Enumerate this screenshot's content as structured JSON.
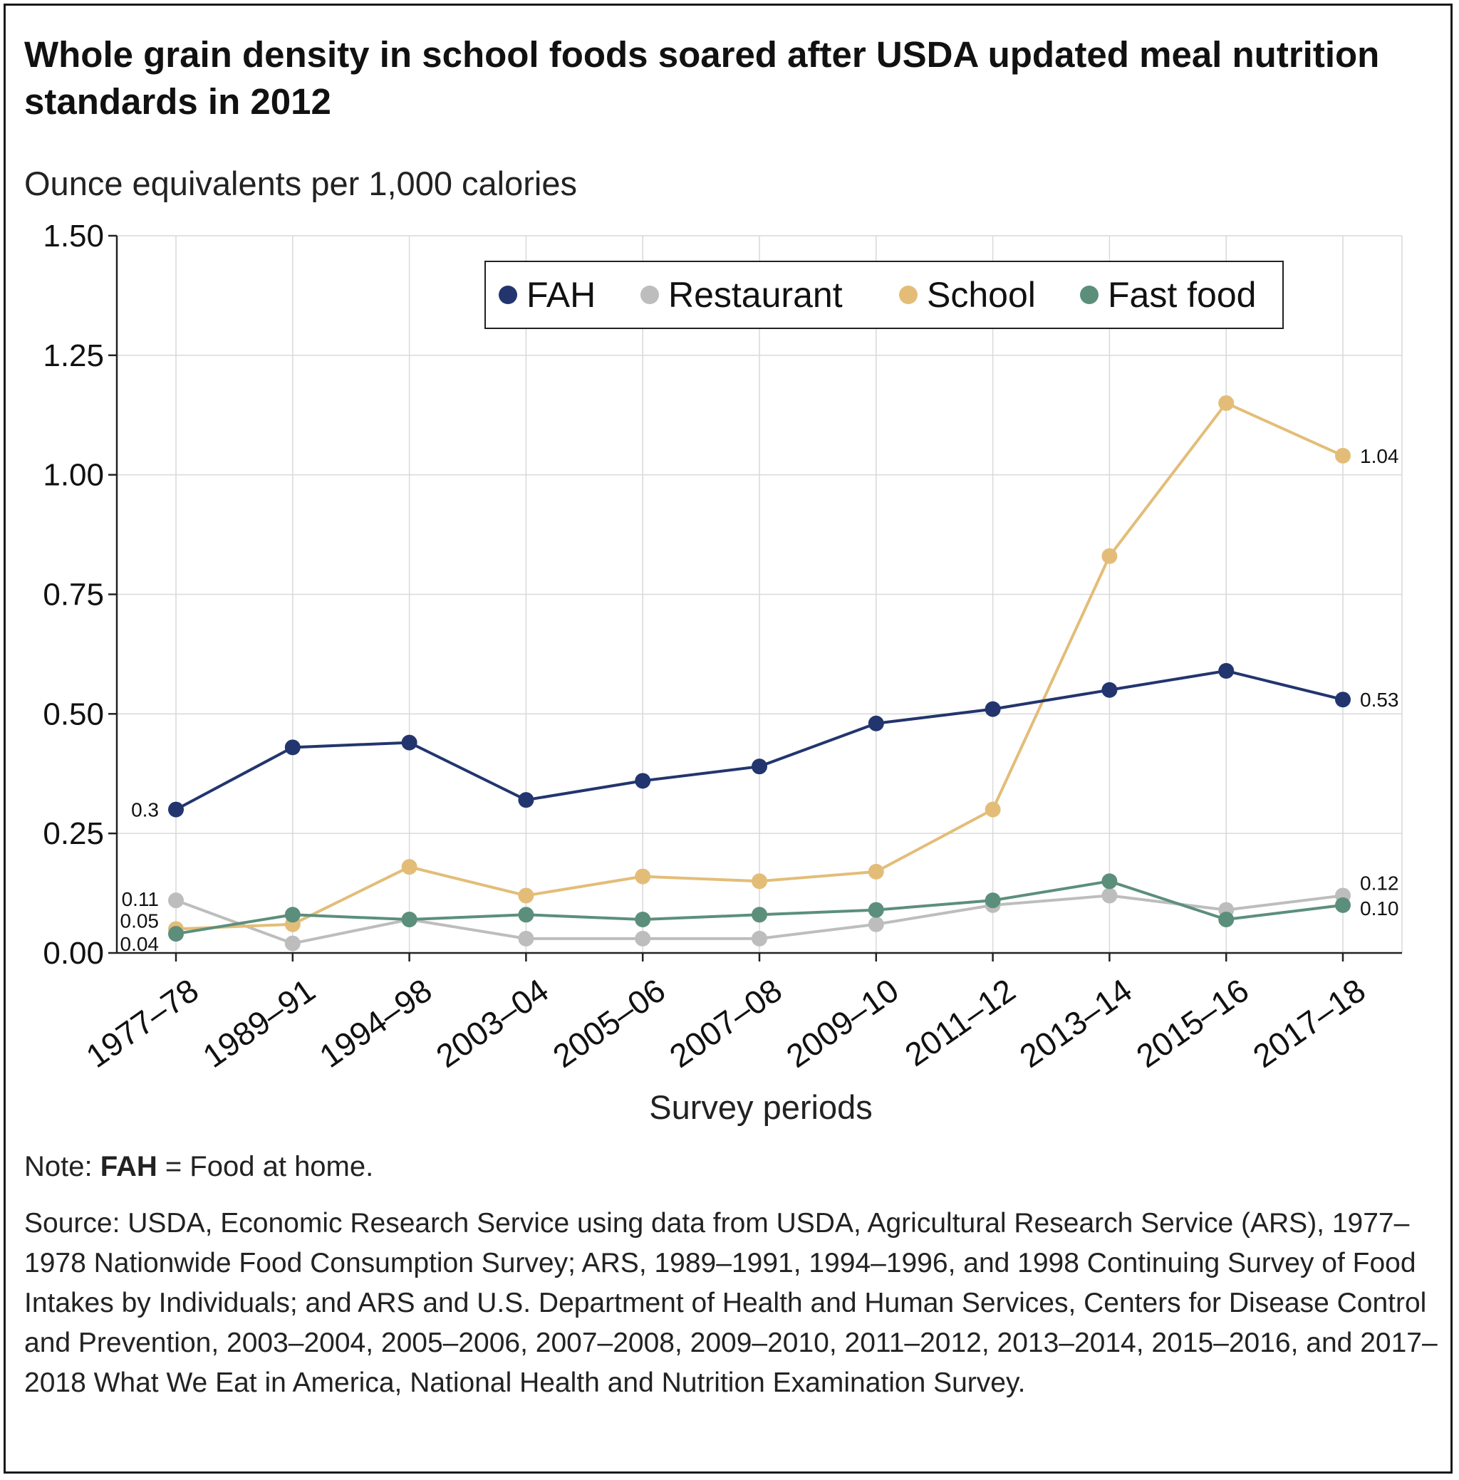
{
  "title": "Whole grain density in school foods soared after USDA updated meal nutrition standards in 2012",
  "note": {
    "prefix": "Note: ",
    "bold": "FAH",
    "rest": " = Food at home."
  },
  "source": "Source: USDA, Economic Research Service using data from USDA, Agricultural Research Service (ARS), 1977–1978 Nationwide Food Consumption Survey; ARS, 1989–1991, 1994–1996, and 1998 Continuing Survey of Food Intakes by Individuals; and ARS and U.S. Department of Health and Human Services, Centers for Disease Control and Prevention, 2003–2004, 2005–2006, 2007–2008, 2009–2010, 2011–2012, 2013–2014, 2015–2016, and 2017–2018 What We Eat in America, National Health and Nutrition Examination Survey.",
  "chart_data": {
    "type": "line",
    "title": "Whole grain density in school foods soared after USDA updated meal nutrition standards in 2012",
    "ylabel": "Ounce equivalents per 1,000 calories",
    "xlabel": "Survey periods",
    "ylim": [
      0,
      1.5
    ],
    "yticks": [
      "0.00",
      "0.25",
      "0.50",
      "0.75",
      "1.00",
      "1.25",
      "1.50"
    ],
    "grid": true,
    "legend_position": "top-right",
    "categories": [
      "1977–78",
      "1989–91",
      "1994–98",
      "2003–04",
      "2005–06",
      "2007–08",
      "2009–10",
      "2011–12",
      "2013–14",
      "2015–16",
      "2017–18"
    ],
    "series": [
      {
        "name": "FAH",
        "color": "#22356e",
        "values": [
          0.3,
          0.43,
          0.44,
          0.32,
          0.36,
          0.39,
          0.48,
          0.51,
          0.55,
          0.59,
          0.53
        ],
        "labels": [
          {
            "index": 0,
            "text": "0.3",
            "side": "left"
          },
          {
            "index": 10,
            "text": "0.53",
            "side": "right"
          }
        ]
      },
      {
        "name": "Restaurant",
        "color": "#bdbdbd",
        "values": [
          0.11,
          0.02,
          0.07,
          0.03,
          0.03,
          0.03,
          0.06,
          0.1,
          0.12,
          0.09,
          0.12
        ],
        "labels": [
          {
            "index": 0,
            "text": "0.11",
            "side": "left"
          },
          {
            "index": 10,
            "text": "0.12",
            "side": "right"
          }
        ]
      },
      {
        "name": "School",
        "color": "#e3bd78",
        "values": [
          0.05,
          0.06,
          0.18,
          0.12,
          0.16,
          0.15,
          0.17,
          0.3,
          0.83,
          1.15,
          1.04
        ],
        "labels": [
          {
            "index": 0,
            "text": "0.05",
            "side": "left"
          },
          {
            "index": 10,
            "text": "1.04",
            "side": "right"
          }
        ]
      },
      {
        "name": "Fast food",
        "color": "#5b8f7c",
        "values": [
          0.04,
          0.08,
          0.07,
          0.08,
          0.07,
          0.08,
          0.09,
          0.11,
          0.15,
          0.07,
          0.1
        ],
        "labels": [
          {
            "index": 0,
            "text": "0.04",
            "side": "left"
          },
          {
            "index": 10,
            "text": "0.10",
            "side": "right"
          }
        ]
      }
    ]
  }
}
